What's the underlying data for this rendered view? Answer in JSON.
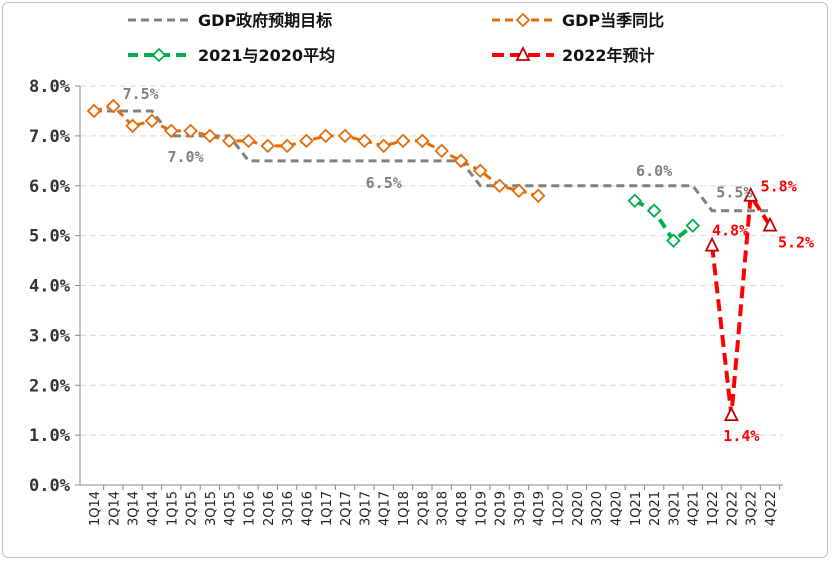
{
  "chart_data": {
    "type": "line",
    "title": "",
    "xlabel": "",
    "ylabel": "",
    "ylim": [
      0,
      8
    ],
    "yticks": [
      "0.0%",
      "1.0%",
      "2.0%",
      "3.0%",
      "4.0%",
      "5.0%",
      "6.0%",
      "7.0%",
      "8.0%"
    ],
    "grid": true,
    "legend_position": "top",
    "categories": [
      "1Q14",
      "2Q14",
      "3Q14",
      "4Q14",
      "1Q15",
      "2Q15",
      "3Q15",
      "4Q15",
      "1Q16",
      "2Q16",
      "3Q16",
      "4Q16",
      "1Q17",
      "2Q17",
      "3Q17",
      "4Q17",
      "1Q18",
      "2Q18",
      "3Q18",
      "4Q18",
      "1Q19",
      "2Q19",
      "3Q19",
      "4Q19",
      "1Q20",
      "2Q20",
      "3Q20",
      "4Q20",
      "1Q21",
      "2Q21",
      "3Q21",
      "4Q21",
      "1Q22",
      "2Q22",
      "3Q22",
      "4Q22"
    ],
    "series": [
      {
        "name": "GDP政府预期目标",
        "color": "#808080",
        "style": "dash",
        "marker": "none",
        "values": [
          7.5,
          7.5,
          7.5,
          7.5,
          7.0,
          7.0,
          7.0,
          7.0,
          6.5,
          6.5,
          6.5,
          6.5,
          6.5,
          6.5,
          6.5,
          6.5,
          6.5,
          6.5,
          6.5,
          6.5,
          6.0,
          6.0,
          6.0,
          6.0,
          6.0,
          6.0,
          6.0,
          6.0,
          6.0,
          6.0,
          6.0,
          6.0,
          5.5,
          5.5,
          5.5,
          5.5
        ]
      },
      {
        "name": "GDP当季同比",
        "color": "#E46C0A",
        "style": "dash",
        "marker": "diamond",
        "values": [
          7.5,
          7.6,
          7.2,
          7.3,
          7.1,
          7.1,
          7.0,
          6.9,
          6.9,
          6.8,
          6.8,
          6.9,
          7.0,
          7.0,
          6.9,
          6.8,
          6.9,
          6.9,
          6.7,
          6.5,
          6.3,
          6.0,
          5.9,
          5.8,
          null,
          null,
          null,
          null,
          null,
          null,
          null,
          null,
          null,
          null,
          null,
          null
        ]
      },
      {
        "name": "2021与2020平均",
        "color": "#00B050",
        "style": "dash",
        "marker": "diamond",
        "values": [
          null,
          null,
          null,
          null,
          null,
          null,
          null,
          null,
          null,
          null,
          null,
          null,
          null,
          null,
          null,
          null,
          null,
          null,
          null,
          null,
          null,
          null,
          null,
          null,
          null,
          null,
          null,
          null,
          5.7,
          5.5,
          4.9,
          5.2,
          null,
          null,
          null,
          null
        ]
      },
      {
        "name": "2022年预计",
        "color": "#FF0000",
        "style": "dash",
        "marker": "triangle",
        "values": [
          null,
          null,
          null,
          null,
          null,
          null,
          null,
          null,
          null,
          null,
          null,
          null,
          null,
          null,
          null,
          null,
          null,
          null,
          null,
          null,
          null,
          null,
          null,
          null,
          null,
          null,
          null,
          null,
          null,
          null,
          null,
          null,
          4.8,
          1.4,
          5.8,
          5.2
        ]
      }
    ],
    "annotations": [
      {
        "text": "7.5%",
        "color": "#808080",
        "x": "3Q14",
        "y": 7.5
      },
      {
        "text": "7.0%",
        "color": "#808080",
        "x": "2Q15",
        "y": 7.0
      },
      {
        "text": "6.5%",
        "color": "#808080",
        "x": "4Q17",
        "y": 6.5
      },
      {
        "text": "6.0%",
        "color": "#808080",
        "x": "2Q21",
        "y": 6.0
      },
      {
        "text": "5.5%",
        "color": "#808080",
        "x": "2Q22",
        "y": 5.5
      },
      {
        "text": "4.8%",
        "color": "#FF0000",
        "x": "1Q22",
        "y": 4.8
      },
      {
        "text": "1.4%",
        "color": "#FF0000",
        "x": "2Q22",
        "y": 1.4
      },
      {
        "text": "5.8%",
        "color": "#FF0000",
        "x": "3Q22",
        "y": 5.8
      },
      {
        "text": "5.2%",
        "color": "#FF0000",
        "x": "4Q22",
        "y": 5.2
      }
    ]
  }
}
